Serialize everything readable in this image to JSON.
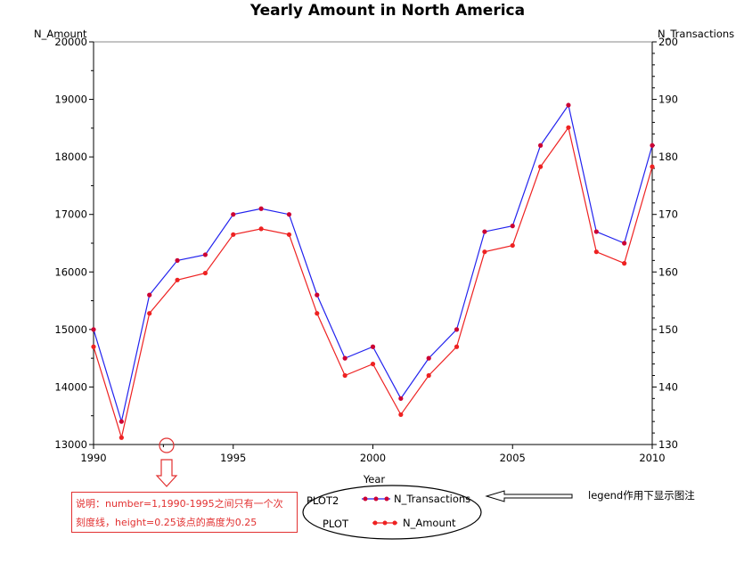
{
  "colors": {
    "transactions_line": "#2222ee",
    "amount_line": "#ee2222",
    "marker_fill": "#cc0033",
    "annotation_red": "#e23030",
    "axis": "#000000",
    "frame": "#888888"
  },
  "chart_data": {
    "type": "line",
    "title": "Yearly Amount in North America",
    "xlabel": "Year",
    "ylabel_left": "N_Amount",
    "ylabel_right": "N_Transactions",
    "x": [
      1990,
      1991,
      1992,
      1993,
      1994,
      1995,
      1996,
      1997,
      1998,
      1999,
      2000,
      2001,
      2002,
      2003,
      2004,
      2005,
      2006,
      2007,
      2008,
      2009,
      2010
    ],
    "xlim": [
      1990,
      2010
    ],
    "ylim_left": [
      13000,
      20000
    ],
    "ylim_right": [
      130,
      200
    ],
    "x_ticks": [
      1990,
      1995,
      2000,
      2005,
      2010
    ],
    "x_minor_tick_years": [
      1992.5
    ],
    "y_ticks_left": [
      13000,
      14000,
      15000,
      16000,
      17000,
      18000,
      19000,
      20000
    ],
    "y_ticks_right": [
      130,
      140,
      150,
      160,
      170,
      180,
      190,
      200
    ],
    "series": [
      {
        "name": "N_Transactions",
        "plot": "PLOT2",
        "axis": "right",
        "color": "#2222ee",
        "values": [
          150,
          134,
          156,
          162,
          163,
          170,
          171,
          170,
          156,
          145,
          147,
          138,
          145,
          150,
          167,
          168,
          182,
          189,
          167,
          165,
          182
        ]
      },
      {
        "name": "N_Amount",
        "plot": "PLOT",
        "axis": "left",
        "color": "#ee2222",
        "values": [
          14700,
          13120,
          15280,
          15860,
          15980,
          16650,
          16750,
          16650,
          15280,
          14200,
          14400,
          13520,
          14200,
          14700,
          16350,
          16460,
          17830,
          18510,
          16350,
          16150,
          17830
        ]
      }
    ],
    "legend": {
      "placement": "bottom-center",
      "entries": [
        {
          "group": "PLOT2",
          "label": "N_Transactions"
        },
        {
          "group": "PLOT",
          "label": "N_Amount"
        }
      ]
    },
    "annotations": {
      "note_line1": "说明：number=1,1990-1995之间只有一个次",
      "note_line2": "刻度线，height=0.25该点的高度为0.25",
      "legend_note": "legend作用下显示图注"
    }
  }
}
